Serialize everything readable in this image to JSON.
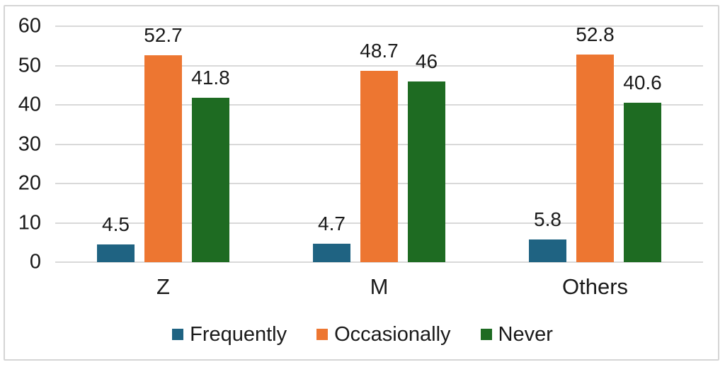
{
  "chart_data": {
    "type": "bar",
    "title": "",
    "categories": [
      "Z",
      "M",
      "Others"
    ],
    "series": [
      {
        "name": "Frequently",
        "color": "#1F6382",
        "values": [
          4.5,
          4.7,
          5.8
        ]
      },
      {
        "name": "Occasionally",
        "color": "#ED7631",
        "values": [
          52.7,
          48.7,
          52.8
        ]
      },
      {
        "name": "Never",
        "color": "#1E6B22",
        "values": [
          41.8,
          46,
          40.6
        ]
      }
    ],
    "ylim": [
      0,
      60
    ],
    "yticks": [
      0,
      10,
      20,
      30,
      40,
      50,
      60
    ],
    "grid": true,
    "gridline_color": "#D9D9D9",
    "frame_border_color": "#D5D5D5",
    "background_color": "#FFFFFF",
    "text_color": "#1A1A1A",
    "legend_position": "bottom-center",
    "data_labels": true
  }
}
